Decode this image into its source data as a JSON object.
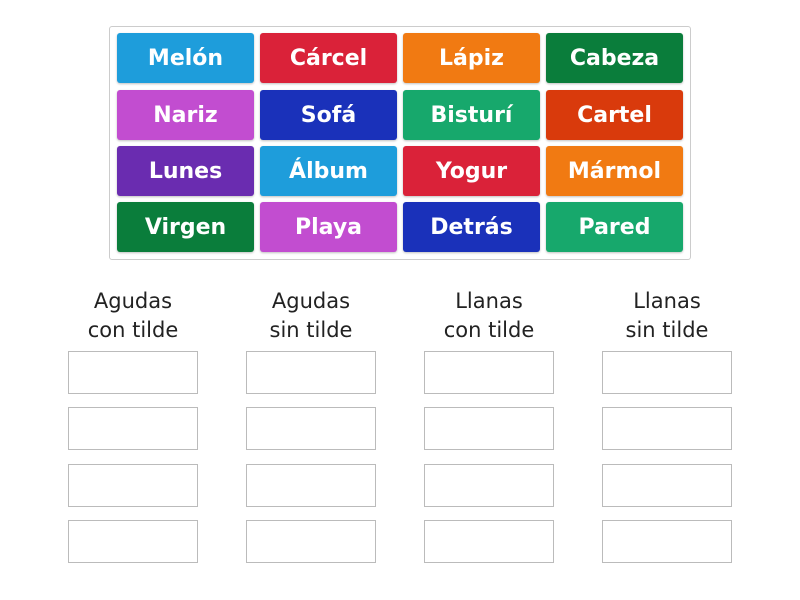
{
  "tiles": [
    {
      "label": "Melón",
      "color": "#1e9ddb"
    },
    {
      "label": "Cárcel",
      "color": "#da2239"
    },
    {
      "label": "Lápiz",
      "color": "#f17a12"
    },
    {
      "label": "Cabeza",
      "color": "#0a7d3b"
    },
    {
      "label": "Nariz",
      "color": "#c24dd0"
    },
    {
      "label": "Sofá",
      "color": "#1a31ba"
    },
    {
      "label": "Bisturí",
      "color": "#17a86c"
    },
    {
      "label": "Cartel",
      "color": "#d93a0c"
    },
    {
      "label": "Lunes",
      "color": "#6a2cb0"
    },
    {
      "label": "Álbum",
      "color": "#1e9ddb"
    },
    {
      "label": "Yogur",
      "color": "#da2239"
    },
    {
      "label": "Mármol",
      "color": "#f17a12"
    },
    {
      "label": "Virgen",
      "color": "#0a7d3b"
    },
    {
      "label": "Playa",
      "color": "#c24dd0"
    },
    {
      "label": "Detrás",
      "color": "#1a31ba"
    },
    {
      "label": "Pared",
      "color": "#17a86c"
    }
  ],
  "categories": [
    {
      "line1": "Agudas",
      "line2": "con tilde"
    },
    {
      "line1": "Agudas",
      "line2": "sin tilde"
    },
    {
      "line1": "Llanas",
      "line2": "con tilde"
    },
    {
      "line1": "Llanas",
      "line2": "sin tilde"
    }
  ]
}
